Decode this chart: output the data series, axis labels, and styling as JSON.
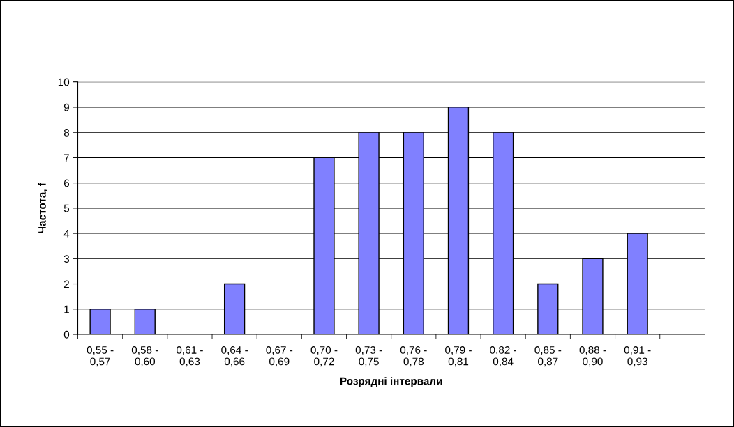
{
  "chart_data": {
    "type": "bar",
    "xlabel": "Розрядні інтервали",
    "ylabel": "Частота, f",
    "categories": [
      "0,55 -\n0,57",
      "0,58 -\n0,60",
      "0,61 -\n0,63",
      "0,64 -\n0,66",
      "0,67 -\n0,69",
      "0,70 -\n0,72",
      "0,73 -\n0,75",
      "0,76 -\n0,78",
      "0,79 -\n0,81",
      "0,82 -\n0,84",
      "0,85 -\n0,87",
      "0,88 -\n0,90",
      "0,91 -\n0,93",
      null
    ],
    "values": [
      1,
      1,
      0,
      2,
      0,
      7,
      8,
      8,
      9,
      8,
      2,
      3,
      4,
      0
    ],
    "color": "#8080ff",
    "ylim": [
      0,
      10
    ],
    "yticks": [
      0,
      1,
      2,
      3,
      4,
      5,
      6,
      7,
      8,
      9,
      10
    ],
    "grid": "y",
    "legend": false
  }
}
